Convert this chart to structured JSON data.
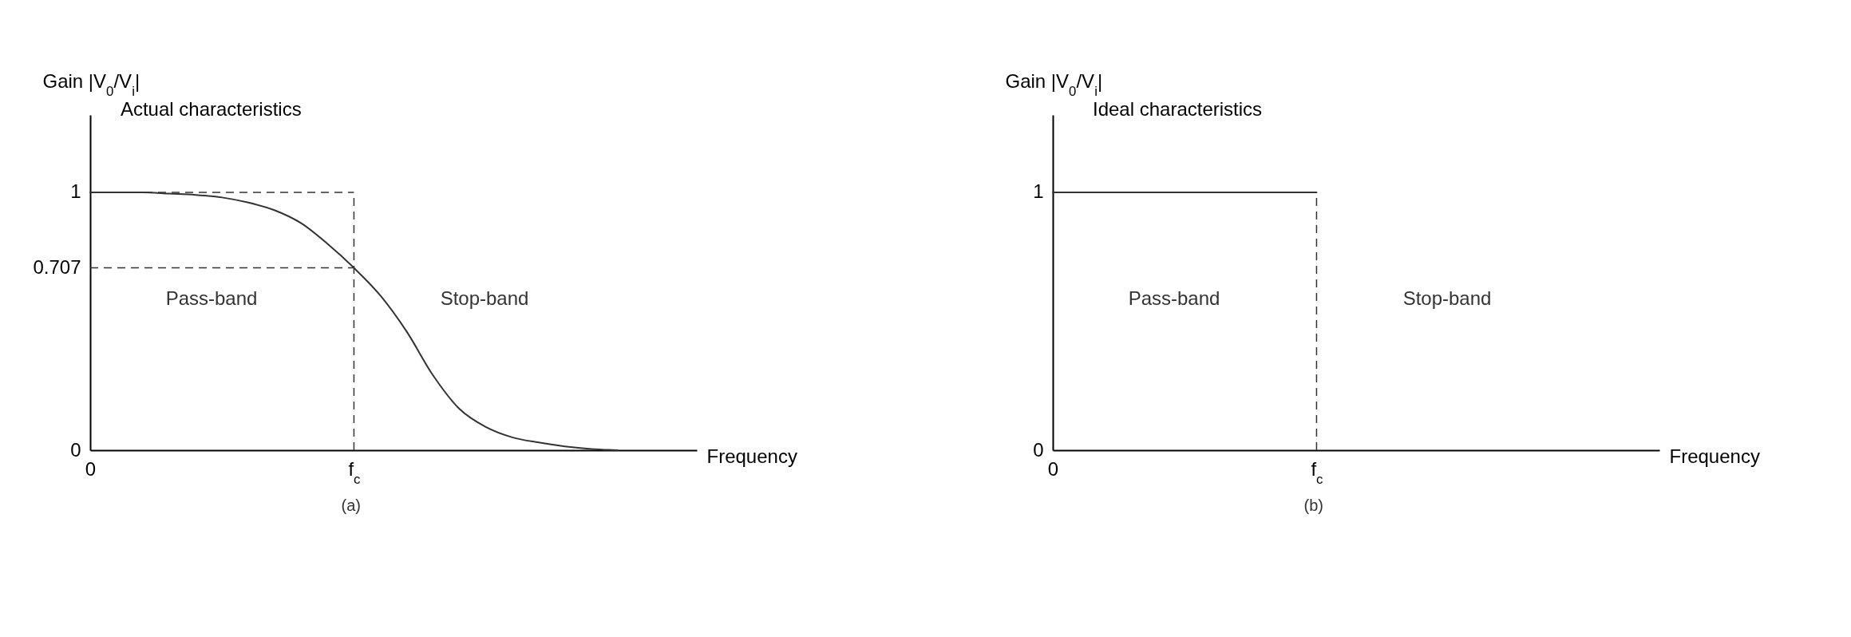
{
  "chart_data": [
    {
      "type": "line",
      "title": "Actual characteristics",
      "xlabel": "Frequency",
      "ylabel": "Gain |V$_{0}$/V$_{i}$|",
      "color": "#333333",
      "categories": [
        "0",
        null,
        null,
        null,
        null,
        null,
        null,
        null,
        null,
        null,
        "f$_{c}$",
        null,
        null,
        null,
        null,
        null,
        null,
        null,
        null,
        null,
        null,
        null,
        null,
        null
      ],
      "values": [
        1,
        1,
        1,
        0.995,
        0.99,
        0.98,
        0.96,
        0.93,
        0.88,
        0.8,
        0.707,
        0.6,
        0.46,
        0.29,
        0.16,
        0.09,
        0.05,
        0.03,
        0.015,
        0.005,
        0,
        null,
        null,
        null
      ],
      "ylim": [
        0,
        1.3
      ],
      "yticks": [
        0,
        0.707,
        1
      ],
      "ref_lines": [
        {
          "axis": "y",
          "value": 1,
          "line_style": "dashed"
        },
        {
          "axis": "y",
          "value": 0.707,
          "line_style": "dashed"
        },
        {
          "axis": "x",
          "value": "f$_{c}$",
          "line_style": "dashed"
        }
      ],
      "annotations": [
        "Pass-band",
        "Stop-band",
        "(a)"
      ]
    },
    {
      "type": "line",
      "title": "Ideal characteristics",
      "xlabel": "Frequency",
      "ylabel": "Gain |V$_{0}$/V$_{i}$|",
      "color": "#333333",
      "categories": [
        "0",
        null,
        null,
        null,
        null,
        null,
        null,
        null,
        null,
        null,
        "f$_{c}$",
        null,
        null,
        null,
        null,
        null,
        null,
        null,
        null,
        null,
        null,
        null,
        null,
        null
      ],
      "values": [
        1,
        1,
        1,
        1,
        1,
        1,
        1,
        1,
        1,
        1,
        1,
        null,
        null,
        null,
        null,
        null,
        null,
        null,
        null,
        null,
        null,
        null,
        null,
        null
      ],
      "ylim": [
        0,
        1.3
      ],
      "yticks": [
        0,
        1
      ],
      "ref_lines": [
        {
          "axis": "x",
          "value": "f$_{c}$",
          "line_style": "dashed"
        }
      ],
      "annotations": [
        "Pass-band",
        "Stop-band",
        "(b)"
      ]
    }
  ]
}
